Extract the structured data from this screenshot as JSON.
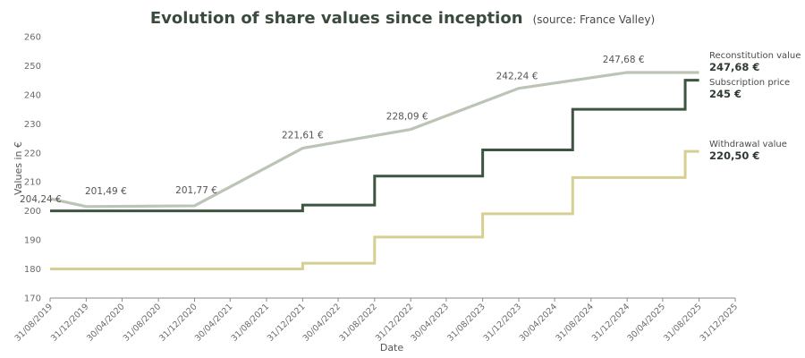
{
  "chart_data": {
    "type": "line",
    "title": "Evolution of share values since inception",
    "subtitle": "(source: France Valley)",
    "xlabel": "Date",
    "ylabel": "Values in €",
    "ylim": [
      170,
      260
    ],
    "yticks": [
      "170",
      "180",
      "190",
      "200",
      "210",
      "220",
      "230",
      "240",
      "250",
      "260"
    ],
    "x_tick_labels": [
      "31/08/2019",
      "31/12/2019",
      "30/04/2020",
      "31/08/2020",
      "31/12/2020",
      "30/04/2021",
      "31/08/2021",
      "31/12/2021",
      "30/04/2022",
      "31/08/2022",
      "31/12/2022",
      "30/04/2023",
      "31/08/2023",
      "31/12/2023",
      "30/04/2024",
      "31/08/2024",
      "31/12/2024",
      "30/04/2025",
      "31/08/2025",
      "31/12/2025"
    ],
    "grid": false,
    "legend": "right",
    "series": [
      {
        "name": "Reconstitution value",
        "color": "#bcc5b5",
        "step": false,
        "points": [
          {
            "x": "31/08/2019",
            "y": 204.24,
            "label": "204,24 €"
          },
          {
            "x": "31/12/2019",
            "y": 201.49,
            "label": "201,49 €"
          },
          {
            "x": "31/12/2020",
            "y": 201.77,
            "label": "201,77 €"
          },
          {
            "x": "31/12/2021",
            "y": 221.61,
            "label": "221,61 €"
          },
          {
            "x": "31/12/2022",
            "y": 228.09,
            "label": "228,09 €"
          },
          {
            "x": "31/12/2023",
            "y": 242.24,
            "label": "242,24 €"
          },
          {
            "x": "31/12/2024",
            "y": 247.68,
            "label": "247,68 €"
          },
          {
            "x": "31/08/2025",
            "y": 247.68,
            "label": ""
          }
        ],
        "end_label": "247,68 €"
      },
      {
        "name": "Subscription price",
        "color": "#3d5441",
        "step": true,
        "points": [
          {
            "x": "31/08/2019",
            "y": 200
          },
          {
            "x": "31/12/2021",
            "y": 202
          },
          {
            "x": "31/08/2022",
            "y": 212
          },
          {
            "x": "31/08/2023",
            "y": 221
          },
          {
            "x": "30/06/2024",
            "y": 235
          },
          {
            "x": "15/07/2025",
            "y": 245
          },
          {
            "x": "31/08/2025",
            "y": 245
          }
        ],
        "end_label": "245 €"
      },
      {
        "name": "Withdrawal value",
        "color": "#d6cf92",
        "step": true,
        "points": [
          {
            "x": "31/08/2019",
            "y": 180
          },
          {
            "x": "31/12/2021",
            "y": 182
          },
          {
            "x": "31/08/2022",
            "y": 191
          },
          {
            "x": "31/08/2023",
            "y": 199
          },
          {
            "x": "30/06/2024",
            "y": 211.5
          },
          {
            "x": "15/07/2025",
            "y": 220.5
          },
          {
            "x": "31/08/2025",
            "y": 220.5
          }
        ],
        "end_label": "220,50 €"
      }
    ]
  }
}
